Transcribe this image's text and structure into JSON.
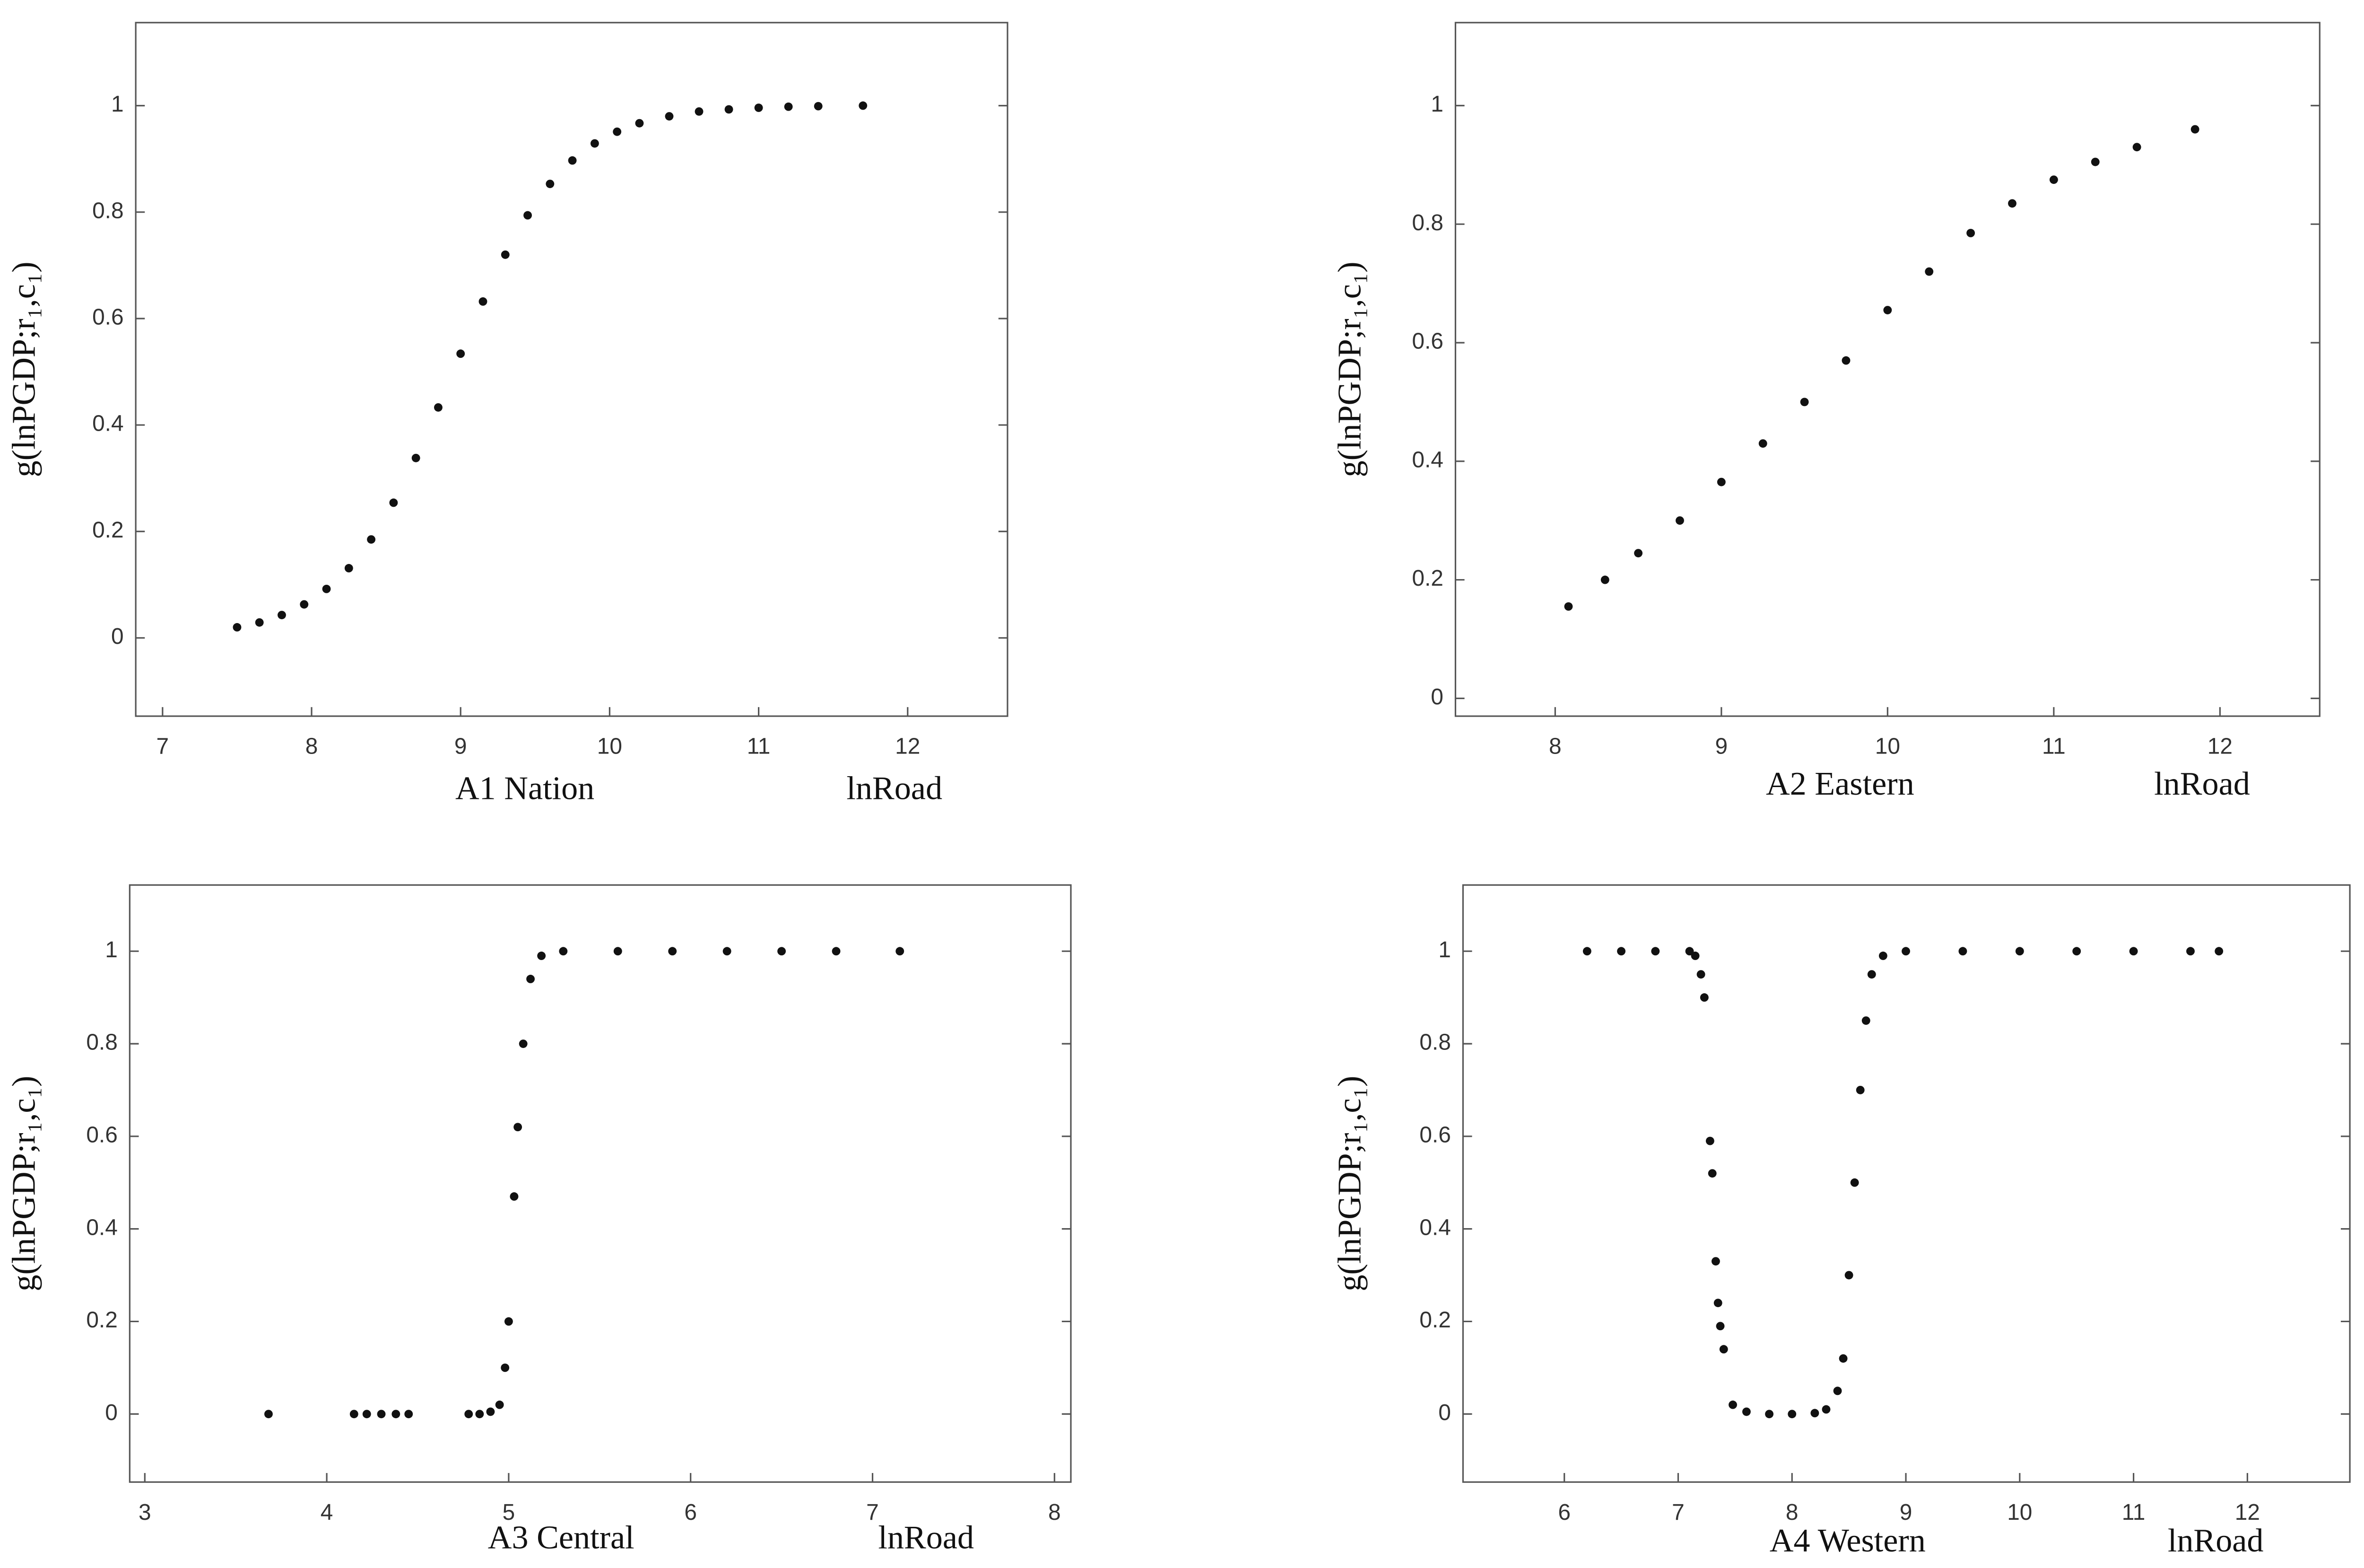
{
  "chart_data": [
    {
      "type": "scatter",
      "title": "A1 Nation",
      "xlabel": "lnRoad",
      "ylabel": "g(lnPGDP;r₁,c₁)",
      "color": "#111111",
      "xlim": [
        6.82,
        12.67
      ],
      "ylim": [
        -0.147,
        1.156
      ],
      "xticks": [
        7,
        8,
        9,
        10,
        11,
        12
      ],
      "yticks": [
        0,
        0.2,
        0.4,
        0.6,
        0.8,
        1
      ],
      "x": [
        7.5,
        7.65,
        7.8,
        7.95,
        8.1,
        8.25,
        8.4,
        8.55,
        8.7,
        8.85,
        9.0,
        9.15,
        9.3,
        9.45,
        9.6,
        9.75,
        9.9,
        10.05,
        10.2,
        10.4,
        10.6,
        10.8,
        11.0,
        11.2,
        11.4,
        11.7
      ],
      "values": [
        0.02,
        0.029,
        0.043,
        0.063,
        0.092,
        0.131,
        0.185,
        0.254,
        0.338,
        0.433,
        0.534,
        0.632,
        0.72,
        0.794,
        0.853,
        0.897,
        0.929,
        0.951,
        0.967,
        0.98,
        0.989,
        0.993,
        0.996,
        0.998,
        0.999,
        1.0
      ]
    },
    {
      "type": "scatter",
      "title": "A2 Eastern",
      "xlabel": "lnRoad",
      "ylabel": "g(lnPGDP;r₁,c₁)",
      "color": "#111111",
      "xlim": [
        7.4,
        12.6
      ],
      "ylim": [
        -0.03,
        1.14
      ],
      "xticks": [
        8,
        9,
        10,
        11,
        12
      ],
      "yticks": [
        0,
        0.2,
        0.4,
        0.6,
        0.8,
        1
      ],
      "x": [
        8.08,
        8.3,
        8.5,
        8.75,
        9.0,
        9.25,
        9.5,
        9.75,
        10.0,
        10.25,
        10.5,
        10.75,
        11.0,
        11.25,
        11.5,
        11.85
      ],
      "values": [
        0.155,
        0.2,
        0.245,
        0.3,
        0.365,
        0.43,
        0.5,
        0.57,
        0.655,
        0.72,
        0.785,
        0.835,
        0.875,
        0.905,
        0.93,
        0.96
      ]
    },
    {
      "type": "scatter",
      "title": "A3 Central",
      "xlabel": "lnRoad",
      "ylabel": "g(lnPGDP;r₁,c₁)",
      "color": "#111111",
      "xlim": [
        2.917,
        8.09
      ],
      "ylim": [
        -0.147,
        1.143
      ],
      "xticks": [
        3,
        4,
        5,
        6,
        7,
        8
      ],
      "yticks": [
        0,
        0.2,
        0.4,
        0.6,
        0.8,
        1
      ],
      "x": [
        3.68,
        4.15,
        4.22,
        4.3,
        4.38,
        4.45,
        4.78,
        4.84,
        4.9,
        4.95,
        4.98,
        5.0,
        5.03,
        5.05,
        5.08,
        5.12,
        5.18,
        5.3,
        5.6,
        5.9,
        6.2,
        6.5,
        6.8,
        7.15
      ],
      "values": [
        0,
        0,
        0,
        0,
        0,
        0,
        0,
        0,
        0.005,
        0.02,
        0.1,
        0.2,
        0.47,
        0.62,
        0.8,
        0.94,
        0.99,
        1,
        1,
        1,
        1,
        1,
        1,
        1
      ]
    },
    {
      "type": "scatter",
      "title": "A4 Western",
      "xlabel": "lnRoad",
      "ylabel": "g(lnPGDP;r₁,c₁)",
      "color": "#111111",
      "xlim": [
        5.11,
        12.9
      ],
      "ylim": [
        -0.147,
        1.143
      ],
      "xticks": [
        6,
        7,
        8,
        9,
        10,
        11,
        12
      ],
      "yticks": [
        0,
        0.2,
        0.4,
        0.6,
        0.8,
        1
      ],
      "x": [
        6.2,
        6.5,
        6.8,
        7.1,
        7.15,
        7.2,
        7.23,
        7.28,
        7.3,
        7.33,
        7.35,
        7.37,
        7.4,
        7.48,
        7.6,
        7.8,
        8.0,
        8.2,
        8.3,
        8.4,
        8.45,
        8.5,
        8.55,
        8.6,
        8.65,
        8.7,
        8.8,
        9.0,
        9.5,
        10.0,
        10.5,
        11.0,
        11.5,
        11.75
      ],
      "values": [
        1,
        1,
        1,
        1,
        0.99,
        0.95,
        0.9,
        0.59,
        0.52,
        0.33,
        0.24,
        0.19,
        0.14,
        0.02,
        0.005,
        0,
        0,
        0.002,
        0.01,
        0.05,
        0.12,
        0.3,
        0.5,
        0.7,
        0.85,
        0.95,
        0.99,
        1,
        1,
        1,
        1,
        1,
        1,
        1
      ]
    }
  ]
}
